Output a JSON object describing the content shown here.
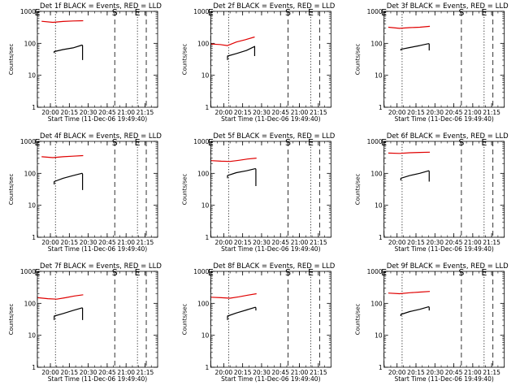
{
  "figure": {
    "background": "#ffffff",
    "event_color": "#000000",
    "lld_color": "#e00000"
  },
  "chart_data": [
    {
      "type": "line",
      "title": "Det 1f BLACK = Events, RED = LLD",
      "xlabel": "Start Time (11-Dec-06 19:49:40)",
      "ylabel": "Counts/sec",
      "y_scale": "log",
      "ylim": [
        1,
        1000
      ],
      "xlim": [
        "19:49:40",
        "21:25:00"
      ],
      "x_ticks": [
        "20:00",
        "20:15",
        "20:30",
        "20:45",
        "21:00",
        "21:15"
      ],
      "y_ticks": [
        "1",
        "10",
        "100",
        "1000"
      ],
      "markers": [
        {
          "label": "E",
          "time": "19:49:40",
          "style": "dashed"
        },
        {
          "label": "",
          "time": "20:04:00",
          "style": "dotted"
        },
        {
          "label": "S",
          "time": "20:51:00",
          "style": "dashed"
        },
        {
          "label": "E",
          "time": "21:09:00",
          "style": "dotted"
        },
        {
          "label": "",
          "time": "21:16:00",
          "style": "dashed"
        }
      ],
      "series": [
        {
          "color": "#e00000",
          "x": [
            "19:53:00",
            "20:02:00",
            "20:10:00",
            "20:18:00",
            "20:26:00"
          ],
          "values": [
            490,
            455,
            485,
            500,
            510
          ]
        },
        {
          "color": "#000000",
          "x": [
            "20:03:00",
            "20:03:00",
            "20:10:00",
            "20:18:00",
            "20:25:00",
            "20:25:30",
            "20:25:30"
          ],
          "values": [
            50,
            55,
            64,
            72,
            88,
            85,
            30
          ]
        }
      ]
    },
    {
      "type": "line",
      "title": "Det 2f BLACK = Events, RED = LLD",
      "xlabel": "Start Time (11-Dec-06 19:49:40)",
      "ylabel": "Counts/sec",
      "y_scale": "log",
      "ylim": [
        1,
        1000
      ],
      "xlim": [
        "19:49:40",
        "21:25:00"
      ],
      "x_ticks": [
        "20:00",
        "20:15",
        "20:30",
        "20:45",
        "21:00",
        "21:15"
      ],
      "y_ticks": [
        "1",
        "10",
        "100",
        "1000"
      ],
      "markers": [
        {
          "label": "E",
          "time": "19:49:40",
          "style": "dashed"
        },
        {
          "label": "",
          "time": "20:04:00",
          "style": "dotted"
        },
        {
          "label": "S",
          "time": "20:51:00",
          "style": "dashed"
        },
        {
          "label": "E",
          "time": "21:09:00",
          "style": "dotted"
        },
        {
          "label": "",
          "time": "21:16:00",
          "style": "dashed"
        }
      ],
      "series": [
        {
          "color": "#e00000",
          "x": [
            "19:50:00",
            "19:57:00",
            "20:03:00",
            "20:10:00",
            "20:17:00",
            "20:24:30"
          ],
          "values": [
            95,
            92,
            85,
            110,
            130,
            158
          ]
        },
        {
          "color": "#000000",
          "x": [
            "20:03:00",
            "20:03:00",
            "20:10:00",
            "20:18:00",
            "20:24:00",
            "20:24:30",
            "20:24:30"
          ],
          "values": [
            30,
            40,
            48,
            60,
            78,
            80,
            40
          ]
        }
      ]
    },
    {
      "type": "line",
      "title": "Det 3f BLACK = Events, RED = LLD",
      "xlabel": "Start Time (11-Dec-06 19:49:40)",
      "ylabel": "Counts/sec",
      "y_scale": "log",
      "ylim": [
        1,
        1000
      ],
      "xlim": [
        "19:49:40",
        "21:25:00"
      ],
      "x_ticks": [
        "20:00",
        "20:15",
        "20:30",
        "20:45",
        "21:00",
        "21:15"
      ],
      "y_ticks": [
        "1",
        "10",
        "100",
        "1000"
      ],
      "markers": [
        {
          "label": "E",
          "time": "19:49:40",
          "style": "dashed"
        },
        {
          "label": "",
          "time": "20:04:00",
          "style": "dotted"
        },
        {
          "label": "S",
          "time": "20:51:00",
          "style": "dashed"
        },
        {
          "label": "E",
          "time": "21:09:00",
          "style": "dotted"
        },
        {
          "label": "",
          "time": "21:16:00",
          "style": "dashed"
        }
      ],
      "series": [
        {
          "color": "#e00000",
          "x": [
            "19:53:00",
            "20:02:00",
            "20:10:00",
            "20:18:00",
            "20:26:00"
          ],
          "values": [
            320,
            295,
            310,
            320,
            340
          ]
        },
        {
          "color": "#000000",
          "x": [
            "20:03:00",
            "20:03:00",
            "20:10:00",
            "20:18:00",
            "20:25:00",
            "20:25:30",
            "20:25:30"
          ],
          "values": [
            60,
            65,
            74,
            85,
            98,
            95,
            60
          ]
        }
      ]
    },
    {
      "type": "line",
      "title": "Det 4f BLACK = Events, RED = LLD",
      "xlabel": "Start Time (11-Dec-06 19:49:40)",
      "ylabel": "Counts/sec",
      "y_scale": "log",
      "ylim": [
        1,
        1000
      ],
      "xlim": [
        "19:49:40",
        "21:25:00"
      ],
      "x_ticks": [
        "20:00",
        "20:15",
        "20:30",
        "20:45",
        "21:00",
        "21:15"
      ],
      "y_ticks": [
        "1",
        "10",
        "100",
        "1000"
      ],
      "markers": [
        {
          "label": "E",
          "time": "19:49:40",
          "style": "dashed"
        },
        {
          "label": "",
          "time": "20:04:00",
          "style": "dotted"
        },
        {
          "label": "S",
          "time": "20:51:00",
          "style": "dashed"
        },
        {
          "label": "E",
          "time": "21:09:00",
          "style": "dotted"
        },
        {
          "label": "",
          "time": "21:16:00",
          "style": "dashed"
        }
      ],
      "series": [
        {
          "color": "#e00000",
          "x": [
            "19:53:00",
            "20:02:00",
            "20:10:00",
            "20:18:00",
            "20:26:00"
          ],
          "values": [
            330,
            310,
            330,
            345,
            360
          ]
        },
        {
          "color": "#000000",
          "x": [
            "20:03:00",
            "20:03:00",
            "20:10:00",
            "20:18:00",
            "20:25:00",
            "20:25:30",
            "20:25:30"
          ],
          "values": [
            45,
            55,
            70,
            85,
            100,
            95,
            30
          ]
        }
      ]
    },
    {
      "type": "line",
      "title": "Det 5f BLACK = Events, RED = LLD",
      "xlabel": "Start Time (11-Dec-06 19:49:40)",
      "ylabel": "Counts/sec",
      "y_scale": "log",
      "ylim": [
        1,
        1000
      ],
      "xlim": [
        "19:49:40",
        "21:25:00"
      ],
      "x_ticks": [
        "20:00",
        "20:15",
        "20:30",
        "20:45",
        "21:00",
        "21:15"
      ],
      "y_ticks": [
        "1",
        "10",
        "100",
        "1000"
      ],
      "markers": [
        {
          "label": "E",
          "time": "19:49:40",
          "style": "dashed"
        },
        {
          "label": "",
          "time": "20:04:00",
          "style": "dotted"
        },
        {
          "label": "S",
          "time": "20:51:00",
          "style": "dashed"
        },
        {
          "label": "E",
          "time": "21:09:00",
          "style": "dotted"
        },
        {
          "label": "",
          "time": "21:16:00",
          "style": "dashed"
        }
      ],
      "series": [
        {
          "color": "#e00000",
          "x": [
            "19:50:00",
            "19:58:00",
            "20:05:00",
            "20:12:00",
            "20:19:00",
            "20:26:00"
          ],
          "values": [
            250,
            240,
            235,
            255,
            280,
            300
          ]
        },
        {
          "color": "#000000",
          "x": [
            "20:03:00",
            "20:03:00",
            "20:10:00",
            "20:18:00",
            "20:25:00",
            "20:25:30",
            "20:25:30"
          ],
          "values": [
            70,
            85,
            105,
            120,
            140,
            135,
            40
          ]
        }
      ]
    },
    {
      "type": "line",
      "title": "Det 6f BLACK = Events, RED = LLD",
      "xlabel": "Start Time (11-Dec-06 19:49:40)",
      "ylabel": "Counts/sec",
      "y_scale": "log",
      "ylim": [
        1,
        1000
      ],
      "xlim": [
        "19:49:40",
        "21:25:00"
      ],
      "x_ticks": [
        "20:00",
        "20:15",
        "20:30",
        "20:45",
        "21:00",
        "21:15"
      ],
      "y_ticks": [
        "1",
        "10",
        "100",
        "1000"
      ],
      "markers": [
        {
          "label": "E",
          "time": "19:49:40",
          "style": "dashed"
        },
        {
          "label": "",
          "time": "20:04:00",
          "style": "dotted"
        },
        {
          "label": "S",
          "time": "20:51:00",
          "style": "dashed"
        },
        {
          "label": "E",
          "time": "21:09:00",
          "style": "dotted"
        },
        {
          "label": "",
          "time": "21:16:00",
          "style": "dashed"
        }
      ],
      "series": [
        {
          "color": "#e00000",
          "x": [
            "19:53:00",
            "20:02:00",
            "20:10:00",
            "20:18:00",
            "20:26:00"
          ],
          "values": [
            430,
            420,
            440,
            450,
            460
          ]
        },
        {
          "color": "#000000",
          "x": [
            "20:03:00",
            "20:03:00",
            "20:10:00",
            "20:18:00",
            "20:25:00",
            "20:25:30",
            "20:25:30"
          ],
          "values": [
            60,
            70,
            85,
            100,
            120,
            115,
            55
          ]
        }
      ]
    },
    {
      "type": "line",
      "title": "Det 7f BLACK = Events, RED = LLD",
      "xlabel": "Start Time (11-Dec-06 19:49:40)",
      "ylabel": "Counts/sec",
      "y_scale": "log",
      "ylim": [
        1,
        1000
      ],
      "xlim": [
        "19:49:40",
        "21:25:00"
      ],
      "x_ticks": [
        "20:00",
        "20:15",
        "20:30",
        "20:45",
        "21:00",
        "21:15"
      ],
      "y_ticks": [
        "1",
        "10",
        "100",
        "1000"
      ],
      "markers": [
        {
          "label": "E",
          "time": "19:49:40",
          "style": "dashed"
        },
        {
          "label": "",
          "time": "20:04:00",
          "style": "dotted"
        },
        {
          "label": "S",
          "time": "20:51:00",
          "style": "dashed"
        },
        {
          "label": "E",
          "time": "21:09:00",
          "style": "dotted"
        },
        {
          "label": "",
          "time": "21:16:00",
          "style": "dashed"
        }
      ],
      "series": [
        {
          "color": "#e00000",
          "x": [
            "19:50:00",
            "19:58:00",
            "20:05:00",
            "20:12:00",
            "20:19:00",
            "20:26:00"
          ],
          "values": [
            150,
            140,
            135,
            150,
            170,
            185
          ]
        },
        {
          "color": "#000000",
          "x": [
            "20:03:00",
            "20:03:00",
            "20:10:00",
            "20:18:00",
            "20:25:00",
            "20:25:30",
            "20:25:30"
          ],
          "values": [
            30,
            40,
            48,
            60,
            72,
            70,
            30
          ]
        }
      ]
    },
    {
      "type": "line",
      "title": "Det 8f BLACK = Events, RED = LLD",
      "xlabel": "Start Time (11-Dec-06 19:49:40)",
      "ylabel": "Counts/sec",
      "y_scale": "log",
      "ylim": [
        1,
        1000
      ],
      "xlim": [
        "19:49:40",
        "21:25:00"
      ],
      "x_ticks": [
        "20:00",
        "20:15",
        "20:30",
        "20:45",
        "21:00",
        "21:15"
      ],
      "y_ticks": [
        "1",
        "10",
        "100",
        "1000"
      ],
      "markers": [
        {
          "label": "E",
          "time": "19:49:40",
          "style": "dashed"
        },
        {
          "label": "",
          "time": "20:04:00",
          "style": "dotted"
        },
        {
          "label": "S",
          "time": "20:51:00",
          "style": "dashed"
        },
        {
          "label": "E",
          "time": "21:09:00",
          "style": "dotted"
        },
        {
          "label": "",
          "time": "21:16:00",
          "style": "dashed"
        }
      ],
      "series": [
        {
          "color": "#e00000",
          "x": [
            "19:50:00",
            "19:58:00",
            "20:05:00",
            "20:12:00",
            "20:19:00",
            "20:26:00"
          ],
          "values": [
            155,
            150,
            145,
            160,
            180,
            200
          ]
        },
        {
          "color": "#000000",
          "x": [
            "20:03:00",
            "20:03:00",
            "20:10:00",
            "20:18:00",
            "20:25:00",
            "20:25:30",
            "20:25:30"
          ],
          "values": [
            30,
            40,
            50,
            62,
            75,
            72,
            60
          ]
        }
      ]
    },
    {
      "type": "line",
      "title": "Det 9f BLACK = Events, RED = LLD",
      "xlabel": "Start Time (11-Dec-06 19:49:40)",
      "ylabel": "Counts/sec",
      "y_scale": "log",
      "ylim": [
        1,
        1000
      ],
      "xlim": [
        "19:49:40",
        "21:25:00"
      ],
      "x_ticks": [
        "20:00",
        "20:15",
        "20:30",
        "20:45",
        "21:00",
        "21:15"
      ],
      "y_ticks": [
        "1",
        "10",
        "100",
        "1000"
      ],
      "markers": [
        {
          "label": "E",
          "time": "19:49:40",
          "style": "dashed"
        },
        {
          "label": "",
          "time": "20:04:00",
          "style": "dotted"
        },
        {
          "label": "S",
          "time": "20:51:00",
          "style": "dashed"
        },
        {
          "label": "E",
          "time": "21:09:00",
          "style": "dotted"
        },
        {
          "label": "",
          "time": "21:16:00",
          "style": "dashed"
        }
      ],
      "series": [
        {
          "color": "#e00000",
          "x": [
            "19:53:00",
            "20:02:00",
            "20:10:00",
            "20:18:00",
            "20:26:00"
          ],
          "values": [
            210,
            200,
            215,
            225,
            235
          ]
        },
        {
          "color": "#000000",
          "x": [
            "20:03:00",
            "20:03:00",
            "20:10:00",
            "20:18:00",
            "20:25:00",
            "20:25:30",
            "20:25:30"
          ],
          "values": [
            40,
            45,
            55,
            65,
            78,
            75,
            60
          ]
        }
      ]
    }
  ]
}
